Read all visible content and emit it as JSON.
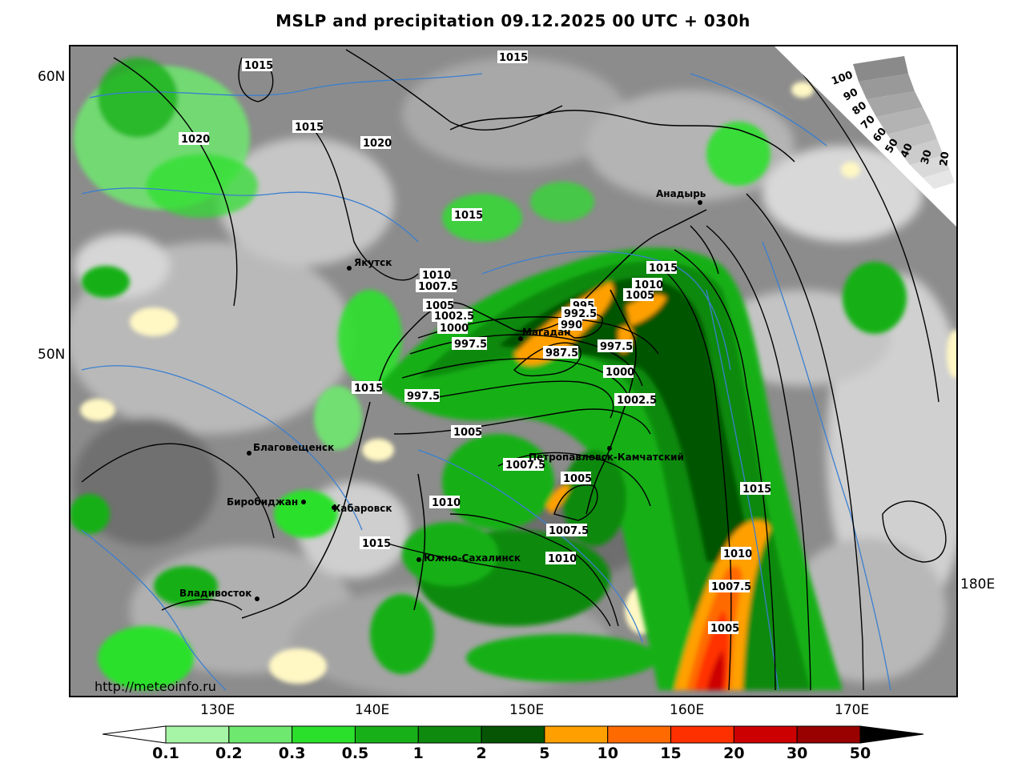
{
  "title": "MSLP and precipitation 09.12.2025 00 UTC + 030h",
  "watermark": "http://meteoinfo.ru",
  "lat_labels": [
    "60N",
    "50N"
  ],
  "lon_labels": [
    "130E",
    "140E",
    "150E",
    "160E",
    "170E",
    "180E"
  ],
  "cities": [
    {
      "name": "Якутск"
    },
    {
      "name": "Магадан"
    },
    {
      "name": "Анадырь"
    },
    {
      "name": "Благовещенск"
    },
    {
      "name": "Биробиджан"
    },
    {
      "name": "Хабаровск"
    },
    {
      "name": "Петропавловск-Камчатский"
    },
    {
      "name": "Южно-Сахалинск"
    },
    {
      "name": "Владивосток"
    }
  ],
  "isobar_labels": [
    "1015",
    "1020",
    "1015",
    "1020",
    "1015",
    "1015",
    "1010",
    "1007.5",
    "1005",
    "1002.5",
    "1000",
    "997.5",
    "1015",
    "997.5",
    "1005",
    "995",
    "992.5",
    "990",
    "987.5",
    "997.5",
    "1015",
    "1010",
    "1005",
    "1000",
    "1002.5",
    "1007.5",
    "1005",
    "1010",
    "1007.5",
    "1010",
    "1015",
    "1015",
    "1010",
    "1007.5",
    "1005"
  ],
  "cloud_scale_labels": [
    "100",
    "90",
    "80",
    "70",
    "60",
    "50",
    "40",
    "30",
    "20"
  ],
  "colorbar": {
    "labels": [
      "0.1",
      "0.2",
      "0.3",
      "0.5",
      "1",
      "2",
      "5",
      "10",
      "15",
      "20",
      "30",
      "50"
    ],
    "colors": [
      "#a6f5a6",
      "#6ee86e",
      "#2be02b",
      "#18b018",
      "#0e8a0e",
      "#055505",
      "#ffa000",
      "#ff6a00",
      "#ff3000",
      "#cc0000",
      "#990000"
    ]
  }
}
